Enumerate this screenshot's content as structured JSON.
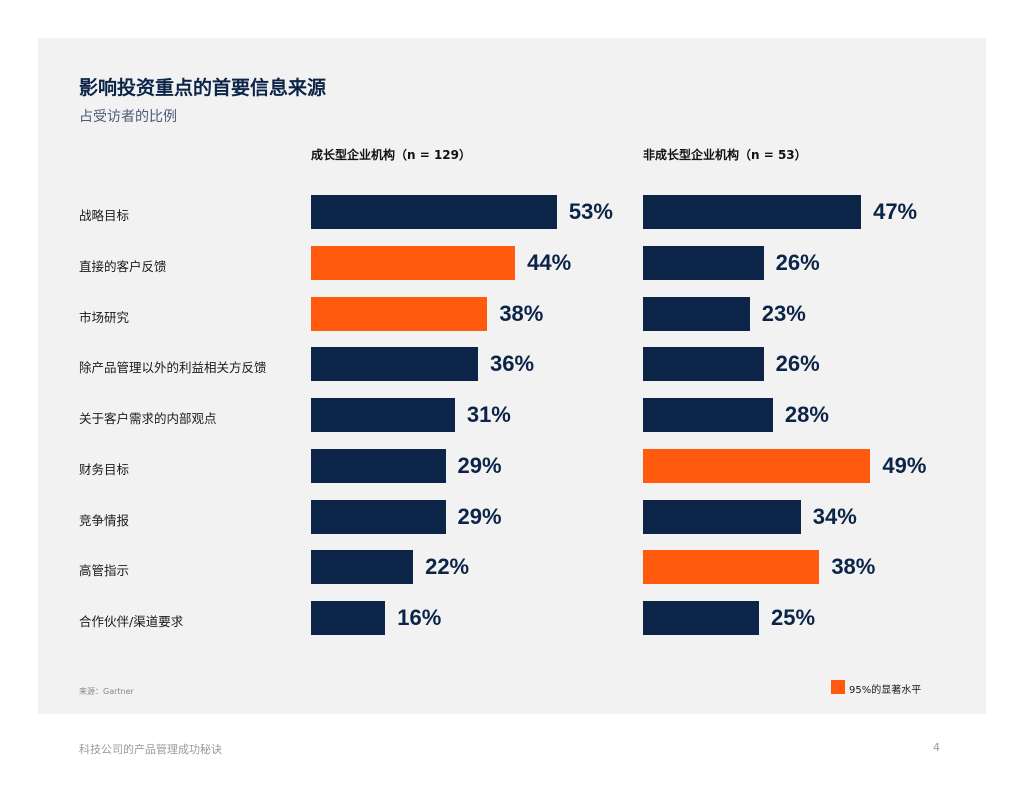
{
  "title": "影响投资重点的首要信息来源",
  "subtitle": "占受访者的比例",
  "source": "来源：Gartner",
  "legend_label": "95%的显著水平",
  "footer": "科技公司的产品管理成功秘诀",
  "page_number": "4",
  "colors": {
    "navy": "#0b2447",
    "orange": "#ff5a0e"
  },
  "chart_data": {
    "type": "bar",
    "orientation": "horizontal",
    "categories": [
      "战略目标",
      "直接的客户反馈",
      "市场研究",
      "除产品管理以外的利益相关方反馈",
      "关于客户需求的内部观点",
      "财务目标",
      "竞争情报",
      "高管指示",
      "合作伙伴/渠道要求"
    ],
    "series": [
      {
        "name": "成长型企业机构（n = 129）",
        "values": [
          53,
          44,
          38,
          36,
          31,
          29,
          29,
          22,
          16
        ],
        "labels": [
          "53%",
          "44%",
          "38%",
          "36%",
          "31%",
          "29%",
          "29%",
          "22%",
          "16%"
        ],
        "significant": [
          false,
          true,
          true,
          false,
          false,
          false,
          false,
          false,
          false
        ]
      },
      {
        "name": "非成长型企业机构（n = 53）",
        "values": [
          47,
          26,
          23,
          26,
          28,
          49,
          34,
          38,
          25
        ],
        "labels": [
          "47%",
          "26%",
          "23%",
          "26%",
          "28%",
          "49%",
          "34%",
          "38%",
          "25%"
        ],
        "significant": [
          false,
          false,
          false,
          false,
          false,
          true,
          false,
          true,
          false
        ]
      }
    ],
    "unit": "%",
    "xlim": [
      0,
      100
    ],
    "legend": "bottom-right"
  }
}
